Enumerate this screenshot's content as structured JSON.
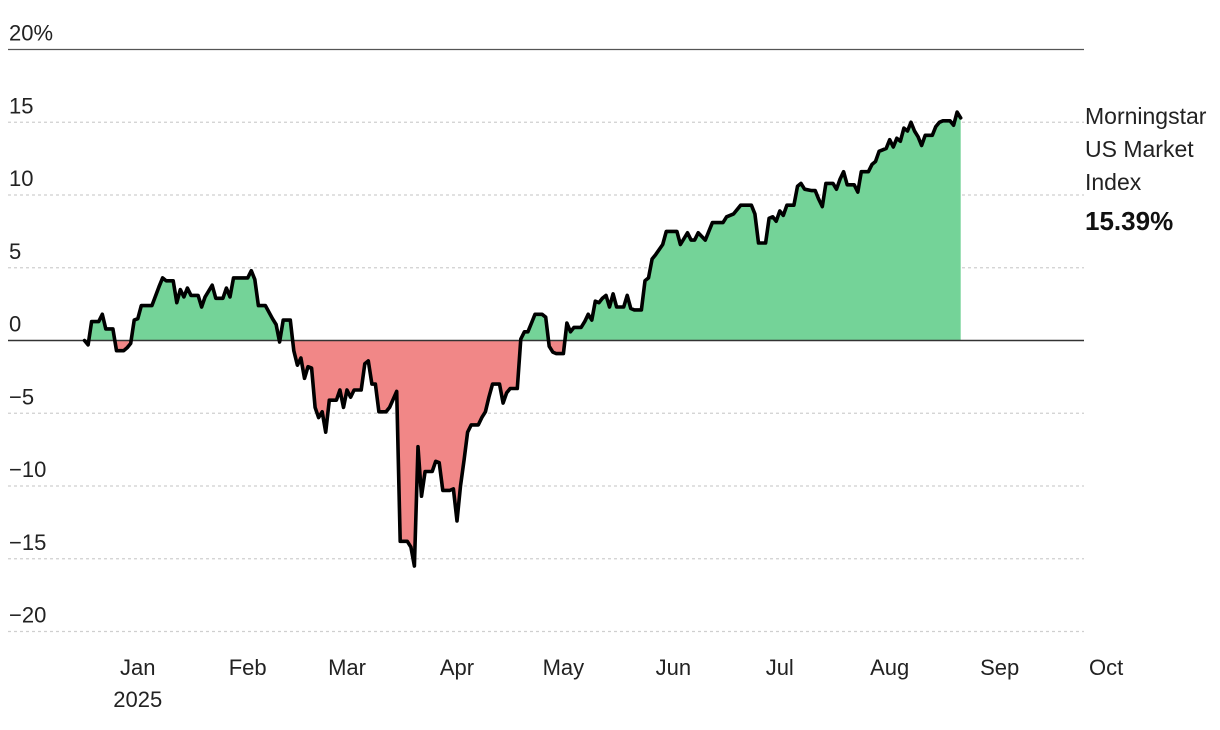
{
  "chart_data": {
    "type": "area",
    "series_name": "Morningstar US Market Index",
    "ytd_return": "15.39%",
    "legend": {
      "line1": "Morningstar",
      "line2": "US Market",
      "line3": "Index"
    },
    "ylim": [
      -22,
      20
    ],
    "yticks": [
      {
        "v": 20,
        "label": "20%"
      },
      {
        "v": 15,
        "label": "15"
      },
      {
        "v": 10,
        "label": "10"
      },
      {
        "v": 5,
        "label": "5"
      },
      {
        "v": 0,
        "label": "0"
      },
      {
        "v": -5,
        "label": "−5"
      },
      {
        "v": -10,
        "label": "−10"
      },
      {
        "v": -15,
        "label": "−15"
      },
      {
        "v": -20,
        "label": "−20"
      }
    ],
    "xticks": [
      {
        "day": 16,
        "label": "Jan",
        "sub": "2025"
      },
      {
        "day": 47,
        "label": "Feb"
      },
      {
        "day": 75,
        "label": "Mar"
      },
      {
        "day": 106,
        "label": "Apr"
      },
      {
        "day": 136,
        "label": "May"
      },
      {
        "day": 167,
        "label": "Jun"
      },
      {
        "day": 197,
        "label": "Jul"
      },
      {
        "day": 228,
        "label": "Aug"
      },
      {
        "day": 259,
        "label": "Sep"
      },
      {
        "day": 289,
        "label": "Oct"
      }
    ],
    "xlim": [
      0,
      304
    ],
    "colors": {
      "positive": "#74d398",
      "negative": "#f18787",
      "line": "#000000",
      "grid": "#cfcfcf"
    },
    "points": [
      [
        1,
        0
      ],
      [
        2,
        -0.3
      ],
      [
        3,
        1.3
      ],
      [
        5,
        1.3
      ],
      [
        6,
        1.8
      ],
      [
        7,
        0.8
      ],
      [
        9,
        0.8
      ],
      [
        10,
        -0.7
      ],
      [
        12,
        -0.7
      ],
      [
        13,
        -0.5
      ],
      [
        14,
        -0.2
      ],
      [
        15,
        1.4
      ],
      [
        16,
        1.5
      ],
      [
        17,
        2.4
      ],
      [
        20,
        2.4
      ],
      [
        22,
        3.7
      ],
      [
        23,
        4.3
      ],
      [
        24,
        4.1
      ],
      [
        26,
        4.1
      ],
      [
        27,
        2.6
      ],
      [
        28,
        3.5
      ],
      [
        29,
        3.0
      ],
      [
        30,
        3.6
      ],
      [
        31,
        3.1
      ],
      [
        33,
        3.1
      ],
      [
        34,
        2.3
      ],
      [
        35,
        3.0
      ],
      [
        37,
        3.8
      ],
      [
        38,
        2.9
      ],
      [
        40,
        2.9
      ],
      [
        41,
        3.6
      ],
      [
        42,
        3.0
      ],
      [
        43,
        4.3
      ],
      [
        47,
        4.3
      ],
      [
        48,
        4.8
      ],
      [
        49,
        4.2
      ],
      [
        50,
        2.4
      ],
      [
        52,
        2.4
      ],
      [
        54,
        1.5
      ],
      [
        55,
        1.1
      ],
      [
        56,
        -0.1
      ],
      [
        57,
        1.4
      ],
      [
        59,
        1.4
      ],
      [
        60,
        -0.7
      ],
      [
        61,
        -1.7
      ],
      [
        62,
        -1.2
      ],
      [
        63,
        -2.6
      ],
      [
        64,
        -1.8
      ],
      [
        65,
        -1.9
      ],
      [
        66,
        -4.6
      ],
      [
        67,
        -5.3
      ],
      [
        68,
        -4.9
      ],
      [
        69,
        -6.3
      ],
      [
        70,
        -4.1
      ],
      [
        72,
        -4.1
      ],
      [
        73,
        -3.4
      ],
      [
        74,
        -4.6
      ],
      [
        75,
        -3.4
      ],
      [
        76,
        -3.9
      ],
      [
        77,
        -3.4
      ],
      [
        79,
        -3.4
      ],
      [
        80,
        -1.6
      ],
      [
        81,
        -1.4
      ],
      [
        82,
        -3.0
      ],
      [
        83,
        -3.0
      ],
      [
        84,
        -4.9
      ],
      [
        86,
        -4.9
      ],
      [
        87,
        -4.6
      ],
      [
        89,
        -3.5
      ],
      [
        90,
        -13.8
      ],
      [
        92,
        -13.8
      ],
      [
        93,
        -14.2
      ],
      [
        94,
        -15.5
      ],
      [
        95,
        -7.3
      ],
      [
        96,
        -10.7
      ],
      [
        97,
        -9.0
      ],
      [
        99,
        -9.0
      ],
      [
        100,
        -8.3
      ],
      [
        101,
        -8.4
      ],
      [
        102,
        -10.3
      ],
      [
        104,
        -10.3
      ],
      [
        105,
        -10.2
      ],
      [
        106,
        -12.4
      ],
      [
        107,
        -10.0
      ],
      [
        108,
        -8.2
      ],
      [
        109,
        -6.3
      ],
      [
        110,
        -5.8
      ],
      [
        112,
        -5.8
      ],
      [
        113,
        -5.3
      ],
      [
        114,
        -4.9
      ],
      [
        115,
        -3.9
      ],
      [
        116,
        -3.0
      ],
      [
        118,
        -3.0
      ],
      [
        119,
        -4.3
      ],
      [
        120,
        -3.6
      ],
      [
        121,
        -3.3
      ],
      [
        123,
        -3.3
      ],
      [
        124,
        0.1
      ],
      [
        125,
        0.6
      ],
      [
        126,
        0.6
      ],
      [
        127,
        1.2
      ],
      [
        128,
        1.8
      ],
      [
        130,
        1.8
      ],
      [
        131,
        1.6
      ],
      [
        132,
        -0.4
      ],
      [
        133,
        -0.8
      ],
      [
        134,
        -0.9
      ],
      [
        136,
        -0.9
      ],
      [
        137,
        1.2
      ],
      [
        138,
        0.6
      ],
      [
        139,
        0.9
      ],
      [
        141,
        0.9
      ],
      [
        142,
        1.3
      ],
      [
        143,
        1.8
      ],
      [
        144,
        1.4
      ],
      [
        145,
        2.7
      ],
      [
        146,
        2.6
      ],
      [
        147,
        2.9
      ],
      [
        148,
        3.1
      ],
      [
        149,
        2.3
      ],
      [
        150,
        3.2
      ],
      [
        151,
        2.3
      ],
      [
        153,
        2.3
      ],
      [
        154,
        3.1
      ],
      [
        155,
        2.2
      ],
      [
        156,
        2.1
      ],
      [
        158,
        2.1
      ],
      [
        159,
        4.1
      ],
      [
        160,
        4.3
      ],
      [
        161,
        5.6
      ],
      [
        162,
        5.9
      ],
      [
        164,
        6.6
      ],
      [
        165,
        7.5
      ],
      [
        168,
        7.5
      ],
      [
        169,
        6.6
      ],
      [
        171,
        7.4
      ],
      [
        172,
        6.9
      ],
      [
        173,
        6.9
      ],
      [
        174,
        7.4
      ],
      [
        176,
        6.9
      ],
      [
        177,
        7.5
      ],
      [
        178,
        8.1
      ],
      [
        181,
        8.1
      ],
      [
        182,
        8.5
      ],
      [
        184,
        8.7
      ],
      [
        186,
        9.3
      ],
      [
        188,
        9.3
      ],
      [
        189,
        9.3
      ],
      [
        190,
        8.7
      ],
      [
        191,
        6.7
      ],
      [
        193,
        6.7
      ],
      [
        194,
        8.4
      ],
      [
        195,
        8.5
      ],
      [
        196,
        8.2
      ],
      [
        197,
        8.9
      ],
      [
        198,
        8.6
      ],
      [
        199,
        9.3
      ],
      [
        201,
        9.3
      ],
      [
        202,
        10.6
      ],
      [
        203,
        10.8
      ],
      [
        204,
        10.4
      ],
      [
        206,
        10.3
      ],
      [
        207,
        10.3
      ],
      [
        208,
        9.7
      ],
      [
        209,
        9.2
      ],
      [
        210,
        10.8
      ],
      [
        212,
        10.8
      ],
      [
        213,
        10.4
      ],
      [
        214,
        11.1
      ],
      [
        215,
        11.6
      ],
      [
        216,
        10.7
      ],
      [
        218,
        10.7
      ],
      [
        219,
        10.2
      ],
      [
        220,
        11.6
      ],
      [
        222,
        11.6
      ],
      [
        223,
        12.1
      ],
      [
        224,
        12.3
      ],
      [
        225,
        13.0
      ],
      [
        227,
        13.2
      ],
      [
        228,
        13.8
      ],
      [
        229,
        13.3
      ],
      [
        230,
        13.9
      ],
      [
        231,
        13.7
      ],
      [
        232,
        14.6
      ],
      [
        233,
        14.4
      ],
      [
        234,
        15.0
      ],
      [
        235,
        14.4
      ],
      [
        236,
        14.0
      ],
      [
        237,
        13.4
      ],
      [
        238,
        14.1
      ],
      [
        240,
        14.1
      ],
      [
        241,
        14.7
      ],
      [
        242,
        15.0
      ],
      [
        243,
        15.1
      ],
      [
        245,
        15.1
      ],
      [
        246,
        14.8
      ],
      [
        247,
        15.7
      ],
      [
        248,
        15.3
      ]
    ]
  }
}
